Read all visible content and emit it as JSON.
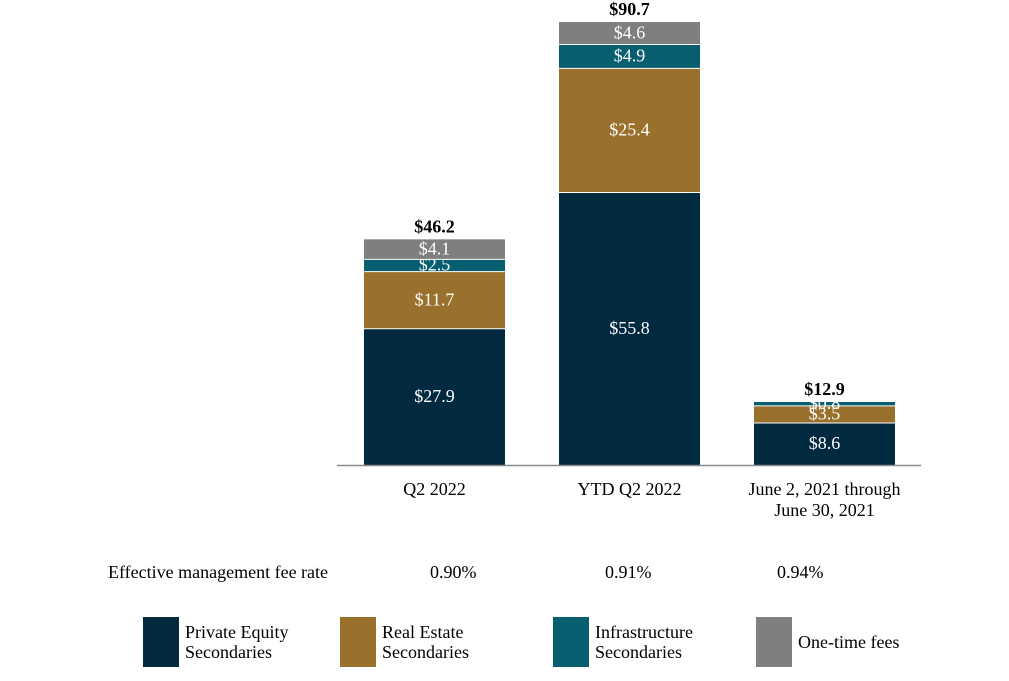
{
  "chart_data": {
    "type": "bar",
    "stacked": true,
    "categories": [
      "Q2 2022",
      "YTD Q2 2022",
      "June 2, 2021 through\nJune 30, 2021"
    ],
    "series": [
      {
        "name": "Private Equity Secondaries",
        "color": "#012a41",
        "values": [
          27.9,
          55.8,
          8.6
        ],
        "labels": [
          "$27.9",
          "$55.8",
          "$8.6"
        ]
      },
      {
        "name": "Real Estate Secondaries",
        "color": "#9a702d",
        "values": [
          11.7,
          25.4,
          3.5
        ],
        "labels": [
          "$11.7",
          "$25.4",
          "$3.5"
        ]
      },
      {
        "name": "Infrastructure Secondaries",
        "color": "#075e6e",
        "values": [
          2.5,
          4.9,
          0.8
        ],
        "labels": [
          "$2.5",
          "$4.9",
          "$0.8"
        ]
      },
      {
        "name": "One-time fees",
        "color": "#7f7f7f",
        "values": [
          4.1,
          4.6,
          0
        ],
        "labels": [
          "$4.1",
          "$4.6",
          ""
        ]
      }
    ],
    "totals": [
      46.2,
      90.7,
      12.9
    ],
    "total_labels": [
      "$46.2",
      "$90.7",
      "$12.9"
    ],
    "ylim": [
      0,
      90.7
    ],
    "grid": false,
    "legend_position": "bottom"
  },
  "fee_rate": {
    "label": "Effective management fee rate",
    "values": [
      "0.90%",
      "0.91%",
      "0.94%"
    ]
  },
  "legend": [
    {
      "label": "Private Equity\nSecondaries",
      "color": "#012a41"
    },
    {
      "label": "Real Estate\nSecondaries",
      "color": "#9a702d"
    },
    {
      "label": "Infrastructure\nSecondaries",
      "color": "#075e6e"
    },
    {
      "label": "One-time fees",
      "color": "#7f7f7f"
    }
  ]
}
